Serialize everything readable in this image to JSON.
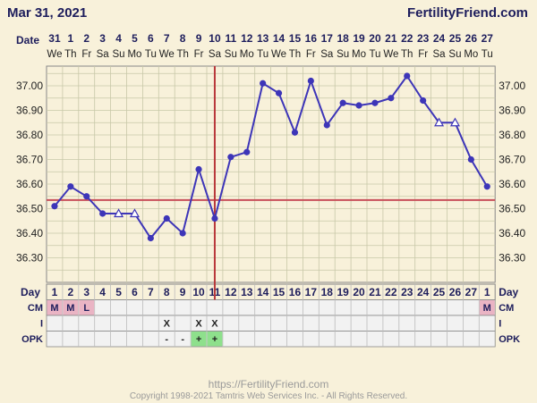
{
  "header": {
    "date": "Mar 31, 2021",
    "brand": "FertilityFriend.com"
  },
  "labels": {
    "date_row": "Date",
    "day_row": "Day",
    "cm_row": "CM",
    "i_row": "I",
    "opk_row": "OPK"
  },
  "footer": {
    "url": "https://FertilityFriend.com",
    "copyright": "Copyright 1998-2021 Tamtris Web Services Inc. - All Rights Reserved."
  },
  "colors": {
    "line": "#3d35b8",
    "marker": "#3d35b8",
    "coverline": "#c8505a",
    "ovulation": "#b8373a",
    "chart_bg": "#f8f1da",
    "grid": "#c8c8a8",
    "cm_bg": "#eab4c4",
    "opk_pos_bg": "#8ee08c",
    "row_bg": "#f2f2f2"
  },
  "chart_data": {
    "type": "line",
    "title": "",
    "xlabel": "Day",
    "ylabel": "",
    "dates": [
      "31",
      "1",
      "2",
      "3",
      "4",
      "5",
      "6",
      "7",
      "8",
      "9",
      "10",
      "11",
      "12",
      "13",
      "14",
      "15",
      "16",
      "17",
      "18",
      "19",
      "20",
      "21",
      "22",
      "23",
      "24",
      "25",
      "26",
      "27"
    ],
    "weekdays": [
      "We",
      "Th",
      "Fr",
      "Sa",
      "Su",
      "Mo",
      "Tu",
      "We",
      "Th",
      "Fr",
      "Sa",
      "Su",
      "Mo",
      "Tu",
      "We",
      "Th",
      "Fr",
      "Sa",
      "Su",
      "Mo",
      "Tu",
      "We",
      "Th",
      "Fr",
      "Sa",
      "Su",
      "Mo",
      "Tu"
    ],
    "cycle_days": [
      "1",
      "2",
      "3",
      "4",
      "5",
      "6",
      "7",
      "8",
      "9",
      "10",
      "11",
      "12",
      "13",
      "14",
      "15",
      "16",
      "17",
      "18",
      "19",
      "20",
      "21",
      "22",
      "23",
      "24",
      "25",
      "26",
      "27",
      "1"
    ],
    "temperatures": [
      36.51,
      36.59,
      36.55,
      36.48,
      36.48,
      36.48,
      36.38,
      36.46,
      36.4,
      36.66,
      36.46,
      36.71,
      36.73,
      37.01,
      36.97,
      36.81,
      37.02,
      36.84,
      36.93,
      36.92,
      36.93,
      36.95,
      37.04,
      36.94,
      36.85,
      36.85,
      36.7,
      36.59
    ],
    "open_markers": [
      4,
      5,
      24,
      25
    ],
    "ylim": [
      36.2,
      37.08
    ],
    "yticks": [
      "37.00",
      "36.90",
      "36.80",
      "36.70",
      "36.60",
      "36.50",
      "36.40",
      "36.30"
    ],
    "coverline": 36.535,
    "ovulation_day_index": 10,
    "cm": [
      "M",
      "M",
      "L",
      "",
      "",
      "",
      "",
      "",
      "",
      "",
      "",
      "",
      "",
      "",
      "",
      "",
      "",
      "",
      "",
      "",
      "",
      "",
      "",
      "",
      "",
      "",
      "",
      "M"
    ],
    "intercourse": [
      "",
      "",
      "",
      "",
      "",
      "",
      "",
      "X",
      "",
      "X",
      "X",
      "",
      "",
      "",
      "",
      "",
      "",
      "",
      "",
      "",
      "",
      "",
      "",
      "",
      "",
      "",
      "",
      ""
    ],
    "opk": [
      "",
      "",
      "",
      "",
      "",
      "",
      "",
      "-",
      "-",
      "+",
      "+",
      "",
      "",
      "",
      "",
      "",
      "",
      "",
      "",
      "",
      "",
      "",
      "",
      "",
      "",
      "",
      "",
      ""
    ],
    "grid": true
  }
}
